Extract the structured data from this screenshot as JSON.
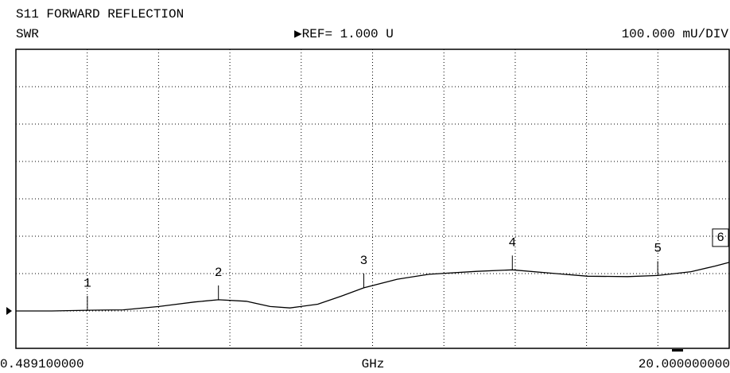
{
  "chart_data": {
    "type": "line",
    "title": "S11 FORWARD REFLECTION",
    "subtitle": "SWR",
    "reference": {
      "label": "▶REF= 1.000 U",
      "value": 1.0
    },
    "scale_label": "100.000 mU/DIV",
    "xlabel": "GHz",
    "xlim": [
      0.4891,
      20
    ],
    "ylim": [
      0.9,
      1.7
    ],
    "xticks": [
      {
        "value": 0.4891,
        "label": "0.489100000"
      },
      {
        "value": 20,
        "label": "20.000000000"
      }
    ],
    "xgrid": [
      2.44,
      4.391,
      6.342,
      8.293,
      10.245,
      12.196,
      14.147,
      16.098,
      18.049
    ],
    "ygrid": [
      1.0,
      1.1,
      1.2,
      1.3,
      1.4,
      1.5,
      1.6
    ],
    "grid": true,
    "color": "#000000",
    "x": [
      0.4891,
      1.467,
      2.444,
      3.422,
      4.4,
      5.378,
      6.029,
      6.79,
      7.442,
      7.985,
      8.745,
      9.397,
      10.005,
      10.918,
      11.787,
      13.091,
      14.068,
      15.263,
      16.132,
      17.219,
      18.045,
      18.957,
      19.609,
      20.0
    ],
    "values": [
      1.0,
      1.0,
      1.002,
      1.003,
      1.012,
      1.024,
      1.03,
      1.026,
      1.012,
      1.008,
      1.018,
      1.04,
      1.062,
      1.085,
      1.098,
      1.106,
      1.11,
      1.1,
      1.093,
      1.092,
      1.095,
      1.105,
      1.12,
      1.13
    ],
    "markers": [
      {
        "label": "1",
        "x": 2.444
      },
      {
        "label": "2",
        "x": 6.029
      },
      {
        "label": "3",
        "x": 10.005
      },
      {
        "label": "4",
        "x": 14.068
      },
      {
        "label": "5",
        "x": 18.045
      },
      {
        "label": "6",
        "x": 20.0,
        "active": true
      }
    ]
  }
}
